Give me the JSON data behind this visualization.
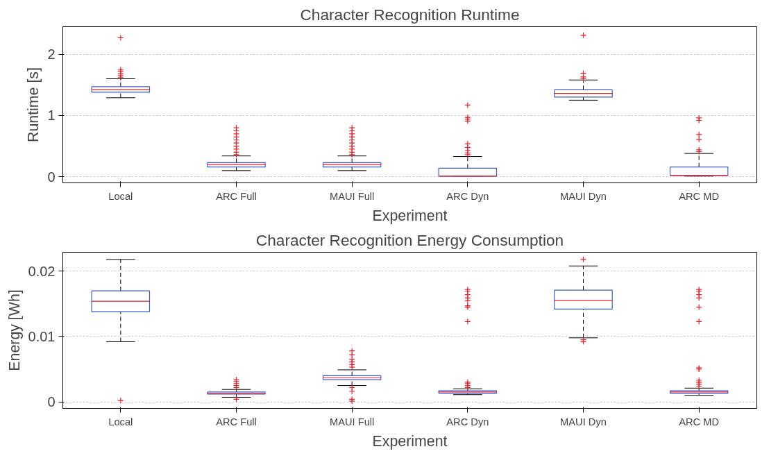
{
  "chart_data": [
    {
      "type": "box",
      "title": "Character Recognition Runtime",
      "xlabel": "Experiment",
      "ylabel": "Runtime [s]",
      "categories": [
        "Local",
        "ARC Full",
        "MAUI Full",
        "ARC Dyn",
        "MAUI Dyn",
        "ARC MD"
      ],
      "ylim": [
        -0.1,
        2.45
      ],
      "yticks": [
        0,
        1,
        2
      ],
      "grid": "y",
      "marker": "cross",
      "boxes": [
        {
          "low": 1.29,
          "q1": 1.38,
          "median": 1.42,
          "q3": 1.47,
          "high": 1.6,
          "outliers": [
            1.62,
            1.65,
            1.68,
            1.72,
            1.75,
            2.27
          ]
        },
        {
          "low": 0.1,
          "q1": 0.16,
          "median": 0.2,
          "q3": 0.23,
          "high": 0.34,
          "outliers": [
            0.36,
            0.4,
            0.45,
            0.5,
            0.55,
            0.6,
            0.65,
            0.7,
            0.75,
            0.8
          ]
        },
        {
          "low": 0.1,
          "q1": 0.16,
          "median": 0.2,
          "q3": 0.23,
          "high": 0.34,
          "outliers": [
            0.36,
            0.4,
            0.45,
            0.5,
            0.55,
            0.6,
            0.65,
            0.7,
            0.75,
            0.8
          ]
        },
        {
          "low": 0.01,
          "q1": 0.01,
          "median": 0.01,
          "q3": 0.14,
          "high": 0.33,
          "outliers": [
            0.36,
            0.39,
            0.43,
            0.48,
            0.54,
            0.91,
            0.94,
            0.97,
            1.17
          ]
        },
        {
          "low": 1.25,
          "q1": 1.3,
          "median": 1.36,
          "q3": 1.42,
          "high": 1.58,
          "outliers": [
            1.6,
            1.63,
            1.69,
            2.31
          ]
        },
        {
          "low": 0.01,
          "q1": 0.02,
          "median": 0.02,
          "q3": 0.16,
          "high": 0.38,
          "outliers": [
            0.41,
            0.44,
            0.61,
            0.69,
            0.92,
            0.96
          ]
        }
      ]
    },
    {
      "type": "box",
      "title": "Character Recognition Energy Consumption",
      "xlabel": "Experiment",
      "ylabel": "Energy [Wh]",
      "categories": [
        "Local",
        "ARC Full",
        "MAUI Full",
        "ARC Dyn",
        "MAUI Dyn",
        "ARC MD"
      ],
      "ylim": [
        -0.001,
        0.0229
      ],
      "yticks": [
        0,
        0.01,
        0.02
      ],
      "grid": "y",
      "marker": "cross",
      "boxes": [
        {
          "low": 0.0092,
          "q1": 0.0138,
          "median": 0.0154,
          "q3": 0.017,
          "high": 0.0218,
          "outliers": [
            0.0002
          ]
        },
        {
          "low": 0.0007,
          "q1": 0.0012,
          "median": 0.0013,
          "q3": 0.0015,
          "high": 0.0019,
          "outliers": [
            0.0004,
            0.0022,
            0.0025,
            0.0028,
            0.0031,
            0.0034
          ]
        },
        {
          "low": 0.0025,
          "q1": 0.0034,
          "median": 0.0037,
          "q3": 0.004,
          "high": 0.0049,
          "outliers": [
            0.0001,
            0.0004,
            0.0016,
            0.0022,
            0.0053,
            0.0057,
            0.0061,
            0.0065,
            0.0072,
            0.0078
          ]
        },
        {
          "low": 0.0011,
          "q1": 0.0013,
          "median": 0.0015,
          "q3": 0.0017,
          "high": 0.002,
          "outliers": [
            0.0022,
            0.0025,
            0.0028,
            0.003,
            0.0123,
            0.0145,
            0.0147,
            0.0155,
            0.0159,
            0.0164,
            0.0169,
            0.0172
          ]
        },
        {
          "low": 0.0098,
          "q1": 0.0142,
          "median": 0.0155,
          "q3": 0.0171,
          "high": 0.0208,
          "outliers": [
            0.0092,
            0.0095,
            0.0218
          ]
        },
        {
          "low": 0.001,
          "q1": 0.0013,
          "median": 0.0015,
          "q3": 0.0017,
          "high": 0.0021,
          "outliers": [
            0.0024,
            0.0027,
            0.003,
            0.0033,
            0.005,
            0.0052,
            0.0123,
            0.0145,
            0.0159,
            0.0164,
            0.0169,
            0.0172
          ]
        }
      ]
    }
  ]
}
